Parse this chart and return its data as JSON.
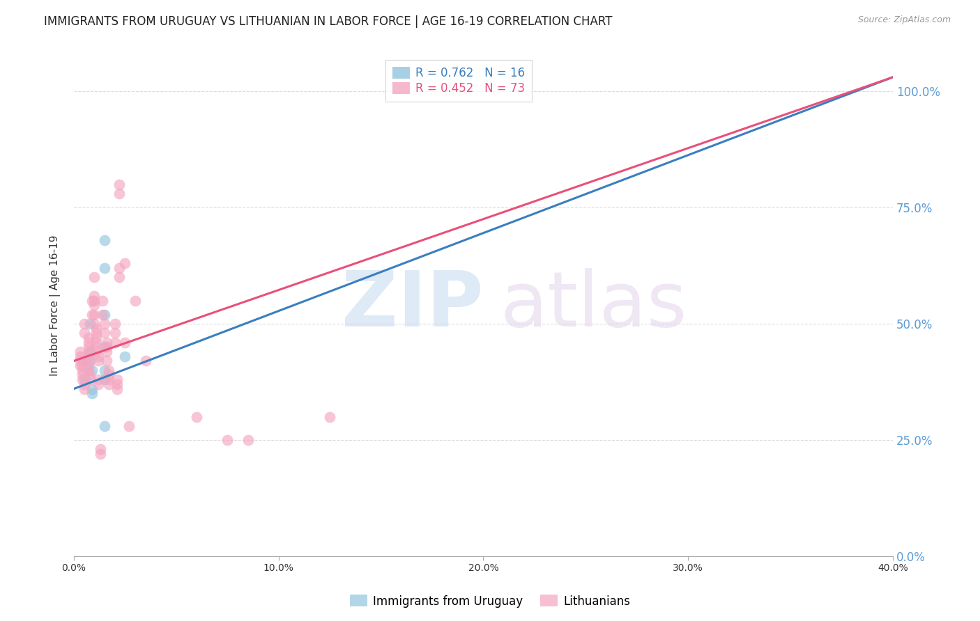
{
  "title": "IMMIGRANTS FROM URUGUAY VS LITHUANIAN IN LABOR FORCE | AGE 16-19 CORRELATION CHART",
  "source": "Source: ZipAtlas.com",
  "ylabel": "In Labor Force | Age 16-19",
  "xlabel_ticks": [
    "0.0%",
    "10.0%",
    "20.0%",
    "30.0%",
    "40.0%"
  ],
  "xlabel_vals": [
    0.0,
    0.1,
    0.2,
    0.3,
    0.4
  ],
  "ylabel_ticks": [
    "0.0%",
    "25.0%",
    "50.0%",
    "75.0%",
    "100.0%"
  ],
  "ylabel_vals": [
    0.0,
    0.25,
    0.5,
    0.75,
    1.0
  ],
  "xlim": [
    0.0,
    0.4
  ],
  "ylim": [
    0.0,
    1.08
  ],
  "watermark_zip": "ZIP",
  "watermark_atlas": "atlas",
  "legend_labels": [
    "Immigrants from Uruguay",
    "Lithuanians"
  ],
  "uruguay_color": "#92c5de",
  "lithuanian_color": "#f4a6c0",
  "uruguay_line_color": "#3a7ebf",
  "lithuanian_line_color": "#e8507a",
  "uruguay_r": 0.762,
  "uruguay_n": 16,
  "lithuanian_r": 0.452,
  "lithuanian_n": 73,
  "uruguay_line": [
    [
      0.0,
      0.36
    ],
    [
      0.4,
      1.03
    ]
  ],
  "lithuanian_line": [
    [
      0.0,
      0.42
    ],
    [
      0.4,
      1.03
    ]
  ],
  "uruguay_points": [
    [
      0.005,
      0.42
    ],
    [
      0.005,
      0.38
    ],
    [
      0.008,
      0.5
    ],
    [
      0.008,
      0.44
    ],
    [
      0.008,
      0.42
    ],
    [
      0.009,
      0.4
    ],
    [
      0.009,
      0.36
    ],
    [
      0.009,
      0.35
    ],
    [
      0.015,
      0.68
    ],
    [
      0.015,
      0.62
    ],
    [
      0.015,
      0.52
    ],
    [
      0.015,
      0.45
    ],
    [
      0.015,
      0.4
    ],
    [
      0.015,
      0.38
    ],
    [
      0.015,
      0.28
    ],
    [
      0.025,
      0.43
    ]
  ],
  "lithuanian_points": [
    [
      0.003,
      0.44
    ],
    [
      0.003,
      0.43
    ],
    [
      0.003,
      0.42
    ],
    [
      0.003,
      0.41
    ],
    [
      0.004,
      0.41
    ],
    [
      0.004,
      0.4
    ],
    [
      0.004,
      0.39
    ],
    [
      0.004,
      0.38
    ],
    [
      0.005,
      0.37
    ],
    [
      0.005,
      0.36
    ],
    [
      0.005,
      0.5
    ],
    [
      0.005,
      0.48
    ],
    [
      0.007,
      0.47
    ],
    [
      0.007,
      0.46
    ],
    [
      0.007,
      0.45
    ],
    [
      0.007,
      0.44
    ],
    [
      0.007,
      0.43
    ],
    [
      0.007,
      0.42
    ],
    [
      0.007,
      0.41
    ],
    [
      0.007,
      0.4
    ],
    [
      0.008,
      0.39
    ],
    [
      0.008,
      0.38
    ],
    [
      0.009,
      0.55
    ],
    [
      0.009,
      0.52
    ],
    [
      0.01,
      0.6
    ],
    [
      0.01,
      0.56
    ],
    [
      0.01,
      0.55
    ],
    [
      0.01,
      0.54
    ],
    [
      0.01,
      0.52
    ],
    [
      0.01,
      0.5
    ],
    [
      0.011,
      0.49
    ],
    [
      0.011,
      0.48
    ],
    [
      0.011,
      0.47
    ],
    [
      0.011,
      0.46
    ],
    [
      0.011,
      0.45
    ],
    [
      0.011,
      0.44
    ],
    [
      0.012,
      0.43
    ],
    [
      0.012,
      0.42
    ],
    [
      0.012,
      0.38
    ],
    [
      0.012,
      0.37
    ],
    [
      0.013,
      0.23
    ],
    [
      0.013,
      0.22
    ],
    [
      0.014,
      0.55
    ],
    [
      0.014,
      0.52
    ],
    [
      0.015,
      0.5
    ],
    [
      0.015,
      0.48
    ],
    [
      0.016,
      0.46
    ],
    [
      0.016,
      0.45
    ],
    [
      0.016,
      0.44
    ],
    [
      0.016,
      0.42
    ],
    [
      0.017,
      0.4
    ],
    [
      0.017,
      0.39
    ],
    [
      0.017,
      0.38
    ],
    [
      0.017,
      0.37
    ],
    [
      0.02,
      0.5
    ],
    [
      0.02,
      0.48
    ],
    [
      0.02,
      0.46
    ],
    [
      0.021,
      0.38
    ],
    [
      0.021,
      0.37
    ],
    [
      0.021,
      0.36
    ],
    [
      0.022,
      0.8
    ],
    [
      0.022,
      0.78
    ],
    [
      0.022,
      0.62
    ],
    [
      0.022,
      0.6
    ],
    [
      0.025,
      0.63
    ],
    [
      0.025,
      0.46
    ],
    [
      0.027,
      0.28
    ],
    [
      0.03,
      0.55
    ],
    [
      0.035,
      0.42
    ],
    [
      0.06,
      0.3
    ],
    [
      0.075,
      0.25
    ],
    [
      0.085,
      0.25
    ],
    [
      0.125,
      0.3
    ]
  ],
  "grid_color": "#cccccc",
  "right_tick_color": "#5b9bd5",
  "background_color": "#ffffff",
  "title_fontsize": 12,
  "axis_label_fontsize": 11,
  "tick_fontsize": 10
}
